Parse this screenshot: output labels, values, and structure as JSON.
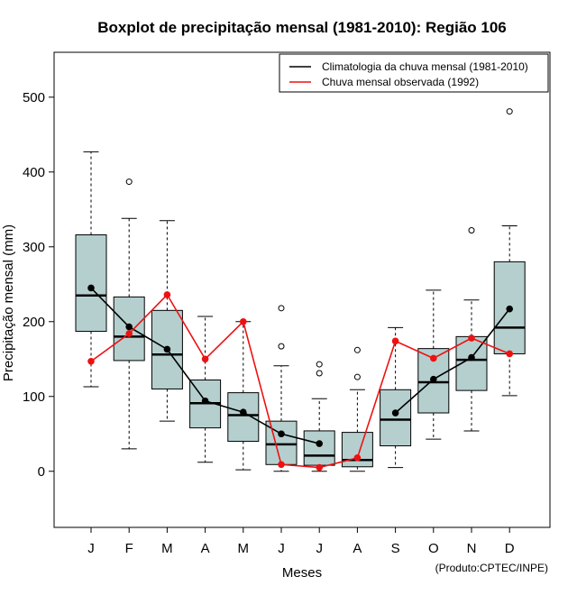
{
  "chart_data": {
    "type": "boxplot",
    "title": "Boxplot de precipitação mensal (1981-2010): Região 106",
    "xlabel": "Meses",
    "ylabel": "Precipitação mensal (mm)",
    "ylim": [
      -75,
      560
    ],
    "yticks": [
      0,
      100,
      200,
      300,
      400,
      500
    ],
    "categories": [
      "J",
      "F",
      "M",
      "A",
      "M",
      "J",
      "J",
      "A",
      "S",
      "O",
      "N",
      "D"
    ],
    "boxes": [
      {
        "whisker_low": 113,
        "q1": 187,
        "median": 235,
        "q3": 316,
        "whisker_high": 427,
        "outliers": []
      },
      {
        "whisker_low": 30,
        "q1": 148,
        "median": 180,
        "q3": 233,
        "whisker_high": 338,
        "outliers": [
          387
        ]
      },
      {
        "whisker_low": 67,
        "q1": 110,
        "median": 156,
        "q3": 215,
        "whisker_high": 335,
        "outliers": []
      },
      {
        "whisker_low": 12,
        "q1": 58,
        "median": 91,
        "q3": 122,
        "whisker_high": 207,
        "outliers": []
      },
      {
        "whisker_low": 2,
        "q1": 40,
        "median": 75,
        "q3": 105,
        "whisker_high": 200,
        "outliers": []
      },
      {
        "whisker_low": 0,
        "q1": 9,
        "median": 36,
        "q3": 67,
        "whisker_high": 141,
        "outliers": [
          167,
          218
        ]
      },
      {
        "whisker_low": 0,
        "q1": 8,
        "median": 21,
        "q3": 54,
        "whisker_high": 97,
        "outliers": [
          131,
          143
        ]
      },
      {
        "whisker_low": 0,
        "q1": 6,
        "median": 15,
        "q3": 52,
        "whisker_high": 109,
        "outliers": [
          126,
          162
        ]
      },
      {
        "whisker_low": 5,
        "q1": 34,
        "median": 69,
        "q3": 109,
        "whisker_high": 192,
        "outliers": []
      },
      {
        "whisker_low": 43,
        "q1": 78,
        "median": 119,
        "q3": 164,
        "whisker_high": 242,
        "outliers": []
      },
      {
        "whisker_low": 54,
        "q1": 108,
        "median": 149,
        "q3": 180,
        "whisker_high": 229,
        "outliers": [
          322
        ]
      },
      {
        "whisker_low": 101,
        "q1": 157,
        "median": 192,
        "q3": 280,
        "whisker_high": 328,
        "outliers": [
          481
        ]
      }
    ],
    "series": [
      {
        "name": "Climatologia da chuva mensal (1981-2010)",
        "color": "#000000",
        "values": [
          245,
          193,
          163,
          94,
          79,
          50,
          37,
          null,
          78,
          123,
          152,
          217
        ]
      },
      {
        "name": "Chuva mensal observada (1992)",
        "color": "#ee1111",
        "values": [
          147,
          184,
          236,
          150,
          200,
          9,
          5,
          18,
          174,
          151,
          178,
          157
        ]
      }
    ],
    "box_fill": "#b5cfcf",
    "legend_position": "top-right",
    "credit": "(Produto:CPTEC/INPE)"
  }
}
